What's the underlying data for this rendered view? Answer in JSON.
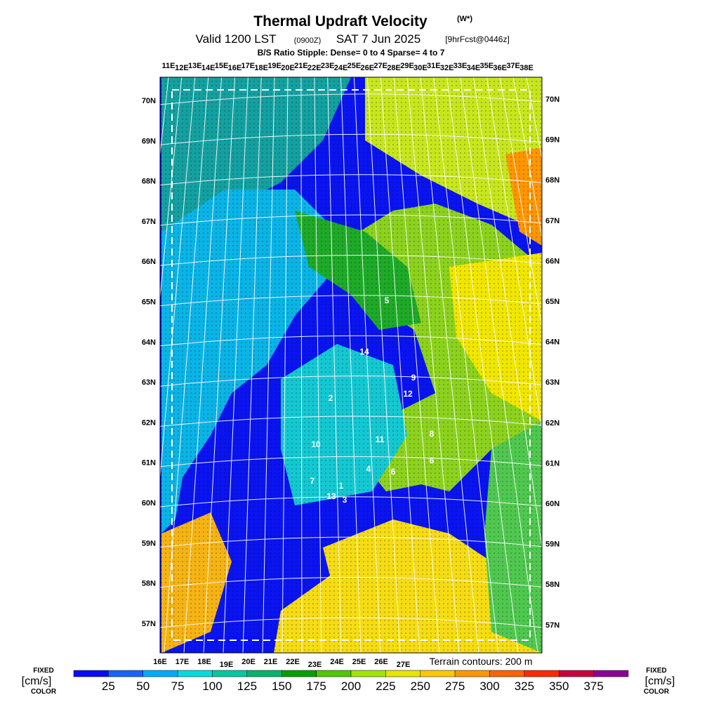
{
  "header": {
    "title": "Thermal Updraft Velocity",
    "title_symbol": "(W*)",
    "valid": "Valid 1200 LST",
    "valid_utc": "(0900Z)",
    "date": "SAT 7 Jun 2025",
    "forecast": "[9hrFcst@0446z]",
    "stipple_note": "B/S Ratio Stipple:  Dense= 0 to 4  Sparse= 4 to 7"
  },
  "map": {
    "top_lon_labels": [
      "11E",
      "12E",
      "13E",
      "14E",
      "15E",
      "16E",
      "17E",
      "18E",
      "19E",
      "20E",
      "21E",
      "22E",
      "23E",
      "24E",
      "25E",
      "26E",
      "27E",
      "28E",
      "29E",
      "30E",
      "31E",
      "32E",
      "33E",
      "34E",
      "35E",
      "36E",
      "37E",
      "38E"
    ],
    "bottom_lon_labels": [
      "16E",
      "17E",
      "18E",
      "19E",
      "20E",
      "21E",
      "22E",
      "23E",
      "24E",
      "25E",
      "26E",
      "27E"
    ],
    "left_lat_labels": [
      "70N",
      "69N",
      "68N",
      "67N",
      "66N",
      "65N",
      "64N",
      "63N",
      "62N",
      "61N",
      "60N",
      "59N",
      "58N",
      "57N"
    ],
    "right_lat_labels": [
      "70N",
      "69N",
      "68N",
      "67N",
      "66N",
      "65N",
      "64N",
      "63N",
      "62N",
      "61N",
      "60N",
      "59N",
      "58N",
      "57N"
    ],
    "region_numbers": [
      "5",
      "14",
      "9",
      "12",
      "2",
      "10",
      "11",
      "8",
      "4",
      "6",
      "7",
      "1",
      "13",
      "3",
      "6"
    ],
    "terrain_note": "Terrain contours: 200 m"
  },
  "colorbar": {
    "left_label": {
      "fixed": "FIXED",
      "unit": "[cm/s]",
      "color": "COLOR"
    },
    "right_label": {
      "fixed": "FIXED",
      "unit": "[cm/s]",
      "color": "COLOR"
    },
    "ticks": [
      25,
      50,
      75,
      100,
      125,
      150,
      175,
      200,
      225,
      250,
      275,
      300,
      325,
      350,
      375
    ],
    "colors": [
      "#0a0aff",
      "#1464ff",
      "#00aaff",
      "#00dcdc",
      "#00c8a0",
      "#00b46e",
      "#00a000",
      "#50c800",
      "#a0e600",
      "#e6e600",
      "#ffc800",
      "#ff9600",
      "#ff6400",
      "#ff2800",
      "#c8003c",
      "#8c0096"
    ]
  }
}
